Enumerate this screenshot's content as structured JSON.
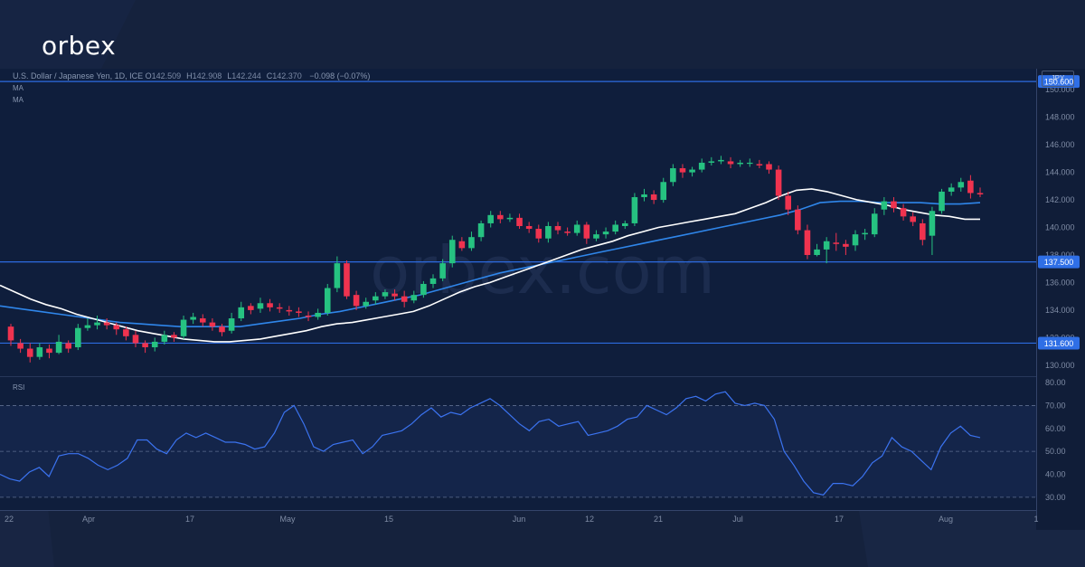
{
  "brand": {
    "logo_text": "orbex",
    "watermark": "orbex.com"
  },
  "header": {
    "instrument": "U.S. Dollar / Japanese Yen, 1D, ICE",
    "ohlc": [
      {
        "label": "O",
        "value": "142.509"
      },
      {
        "label": "H",
        "value": "142.908"
      },
      {
        "label": "L",
        "value": "142.244"
      },
      {
        "label": "C",
        "value": "142.370"
      }
    ],
    "change": "−0.098 (−0.07%)",
    "ma1": "MA",
    "ma2": "MA",
    "currency": "JPY"
  },
  "colors": {
    "up": "#26c281",
    "down": "#f0334f",
    "ma_fast": "#ffffff",
    "ma_slow": "#2f86ea",
    "hline": "#2d6be0",
    "rsi": "#3b73f0",
    "price_tag": "#2f6fe6"
  },
  "chart_data": [
    {
      "type": "candlestick",
      "title": "",
      "ylim": [
        129.2,
        151.0
      ],
      "y_ticks": [
        130.0,
        132.0,
        134.0,
        136.0,
        138.0,
        140.0,
        142.0,
        144.0,
        146.0,
        148.0,
        150.0
      ],
      "x_tick_labels": [
        "22",
        "Apr",
        "17",
        "May",
        "15",
        "Jun",
        "12",
        "21",
        "Jul",
        "17",
        "Aug",
        "1"
      ],
      "price_levels": [
        150.6,
        137.5,
        131.6
      ],
      "candles": [
        [
          132.8,
          131.8,
          133.0,
          131.4
        ],
        [
          131.6,
          131.2,
          131.9,
          130.9
        ],
        [
          131.2,
          130.6,
          131.6,
          130.2
        ],
        [
          130.6,
          131.3,
          131.6,
          130.4
        ],
        [
          131.2,
          130.9,
          131.5,
          130.5
        ],
        [
          130.9,
          131.7,
          132.2,
          130.8
        ],
        [
          131.6,
          131.2,
          131.8,
          130.9
        ],
        [
          131.3,
          132.7,
          133.0,
          131.1
        ],
        [
          132.7,
          132.9,
          133.4,
          132.5
        ],
        [
          132.9,
          133.1,
          133.6,
          132.6
        ],
        [
          133.1,
          132.9,
          133.4,
          132.6
        ],
        [
          132.9,
          132.6,
          133.1,
          132.2
        ],
        [
          132.6,
          132.1,
          132.8,
          131.8
        ],
        [
          132.2,
          131.6,
          132.5,
          131.3
        ],
        [
          131.6,
          131.3,
          131.8,
          130.9
        ],
        [
          131.3,
          131.7,
          132.0,
          131.0
        ],
        [
          131.7,
          132.2,
          132.5,
          131.5
        ],
        [
          132.2,
          132.0,
          132.4,
          131.7
        ],
        [
          132.1,
          133.3,
          133.6,
          131.9
        ],
        [
          133.3,
          133.5,
          133.8,
          133.0
        ],
        [
          133.4,
          133.1,
          133.7,
          132.8
        ],
        [
          133.1,
          132.8,
          133.4,
          132.5
        ],
        [
          132.8,
          132.4,
          133.0,
          132.1
        ],
        [
          132.5,
          133.4,
          133.8,
          132.3
        ],
        [
          133.4,
          134.2,
          134.6,
          133.2
        ],
        [
          134.3,
          134.0,
          134.5,
          133.7
        ],
        [
          134.1,
          134.5,
          134.9,
          133.8
        ],
        [
          134.5,
          134.2,
          134.8,
          133.9
        ],
        [
          134.2,
          134.1,
          134.5,
          133.8
        ],
        [
          134.0,
          133.9,
          134.3,
          133.6
        ],
        [
          133.9,
          133.8,
          134.2,
          133.5
        ],
        [
          133.6,
          133.5,
          133.9,
          133.2
        ],
        [
          133.5,
          133.8,
          134.1,
          133.3
        ],
        [
          133.8,
          135.6,
          135.9,
          133.6
        ],
        [
          135.6,
          137.4,
          137.9,
          135.3
        ],
        [
          137.4,
          135.0,
          137.6,
          134.8
        ],
        [
          135.1,
          134.3,
          135.4,
          134.0
        ],
        [
          134.3,
          134.6,
          134.9,
          134.1
        ],
        [
          134.7,
          135.0,
          135.3,
          134.4
        ],
        [
          135.0,
          135.3,
          135.5,
          134.8
        ],
        [
          135.2,
          135.0,
          135.5,
          134.7
        ],
        [
          135.0,
          134.6,
          135.4,
          134.2
        ],
        [
          134.7,
          135.1,
          135.4,
          134.5
        ],
        [
          135.1,
          135.9,
          136.1,
          134.9
        ],
        [
          135.9,
          136.3,
          136.6,
          135.6
        ],
        [
          136.3,
          137.4,
          137.7,
          136.1
        ],
        [
          137.4,
          139.1,
          139.4,
          137.1
        ],
        [
          139.0,
          138.5,
          139.3,
          138.3
        ],
        [
          138.5,
          139.3,
          139.7,
          138.3
        ],
        [
          139.3,
          140.3,
          140.5,
          139.0
        ],
        [
          140.3,
          140.9,
          141.2,
          140.0
        ],
        [
          140.9,
          140.6,
          141.2,
          140.3
        ],
        [
          140.6,
          140.7,
          141.0,
          140.4
        ],
        [
          140.7,
          140.1,
          141.0,
          139.9
        ],
        [
          140.1,
          139.9,
          140.4,
          139.6
        ],
        [
          139.9,
          139.2,
          140.2,
          138.9
        ],
        [
          139.2,
          140.1,
          140.4,
          138.9
        ],
        [
          140.1,
          139.8,
          140.4,
          139.5
        ],
        [
          139.7,
          139.6,
          140.0,
          139.4
        ],
        [
          139.6,
          140.2,
          140.5,
          139.4
        ],
        [
          140.2,
          139.2,
          140.4,
          138.8
        ],
        [
          139.2,
          139.5,
          139.8,
          139.0
        ],
        [
          139.5,
          139.7,
          140.0,
          139.2
        ],
        [
          139.7,
          140.2,
          140.5,
          139.5
        ],
        [
          140.1,
          140.3,
          140.5,
          139.9
        ],
        [
          140.3,
          142.2,
          142.5,
          140.1
        ],
        [
          142.2,
          142.4,
          142.8,
          141.9
        ],
        [
          142.4,
          142.0,
          142.7,
          141.7
        ],
        [
          142.0,
          143.3,
          143.6,
          141.8
        ],
        [
          143.3,
          144.3,
          144.6,
          143.0
        ],
        [
          144.3,
          144.0,
          144.6,
          143.6
        ],
        [
          144.0,
          144.2,
          144.4,
          143.7
        ],
        [
          144.2,
          144.7,
          145.0,
          144.0
        ],
        [
          144.7,
          144.8,
          145.1,
          144.5
        ],
        [
          144.8,
          144.9,
          145.2,
          144.6
        ],
        [
          144.8,
          144.6,
          145.1,
          144.3
        ],
        [
          144.6,
          144.7,
          144.9,
          144.4
        ],
        [
          144.7,
          144.7,
          145.0,
          144.4
        ],
        [
          144.6,
          144.5,
          144.9,
          144.3
        ],
        [
          144.6,
          144.2,
          144.8,
          143.9
        ],
        [
          144.2,
          142.3,
          144.5,
          142.0
        ],
        [
          142.3,
          141.3,
          142.6,
          140.9
        ],
        [
          141.3,
          139.8,
          141.6,
          139.5
        ],
        [
          139.8,
          138.0,
          140.2,
          137.7
        ],
        [
          138.0,
          138.4,
          138.8,
          137.9
        ],
        [
          138.4,
          139.0,
          139.3,
          137.4
        ],
        [
          138.9,
          138.8,
          139.6,
          138.3
        ],
        [
          138.8,
          138.6,
          139.1,
          138.0
        ],
        [
          138.7,
          139.5,
          139.8,
          138.3
        ],
        [
          139.5,
          139.6,
          139.9,
          139.1
        ],
        [
          139.5,
          141.0,
          141.4,
          139.3
        ],
        [
          141.3,
          141.9,
          142.2,
          140.9
        ],
        [
          141.9,
          141.4,
          142.2,
          141.1
        ],
        [
          141.4,
          140.8,
          141.7,
          140.5
        ],
        [
          140.8,
          140.4,
          141.1,
          140.1
        ],
        [
          140.3,
          139.1,
          140.6,
          138.7
        ],
        [
          139.4,
          141.2,
          141.5,
          138.0
        ],
        [
          141.2,
          142.6,
          142.8,
          141.0
        ],
        [
          142.6,
          142.9,
          143.2,
          142.3
        ],
        [
          142.9,
          143.3,
          143.6,
          142.6
        ],
        [
          143.4,
          142.5,
          143.8,
          142.1
        ],
        [
          142.5,
          142.4,
          142.9,
          142.2
        ]
      ],
      "ma_fast": [
        135.8,
        135.3,
        134.8,
        134.4,
        134.1,
        133.7,
        133.4,
        133.1,
        132.8,
        132.5,
        132.3,
        132.1,
        131.9,
        131.8,
        131.7,
        131.7,
        131.8,
        131.9,
        132.1,
        132.3,
        132.5,
        132.8,
        133.0,
        133.1,
        133.3,
        133.5,
        133.7,
        133.9,
        134.3,
        134.8,
        135.3,
        135.7,
        136.0,
        136.4,
        136.8,
        137.2,
        137.6,
        138.0,
        138.4,
        138.7,
        139.0,
        139.4,
        139.7,
        140.0,
        140.2,
        140.4,
        140.6,
        140.8,
        141.0,
        141.4,
        141.8,
        142.3,
        142.7,
        142.8,
        142.6,
        142.3,
        142.0,
        141.8,
        141.6,
        141.3,
        141.1,
        140.9,
        140.8,
        140.6,
        140.6
      ],
      "ma_slow": [
        134.3,
        134.1,
        133.9,
        133.7,
        133.5,
        133.3,
        133.1,
        133.0,
        132.9,
        132.8,
        132.8,
        132.8,
        132.8,
        133.0,
        133.2,
        133.4,
        133.7,
        133.9,
        134.2,
        134.5,
        134.8,
        135.1,
        135.5,
        135.9,
        136.3,
        136.7,
        137.0,
        137.3,
        137.6,
        137.9,
        138.2,
        138.5,
        138.8,
        139.1,
        139.4,
        139.7,
        140.0,
        140.3,
        140.6,
        140.9,
        141.3,
        141.8,
        141.9,
        141.9,
        141.8,
        141.8,
        141.8,
        141.7,
        141.7,
        141.8
      ],
      "ma_fast_name": "",
      "ma_slow_name": ""
    },
    {
      "type": "line",
      "title": "RSI",
      "ylim": [
        26,
        82
      ],
      "y_ticks": [
        30,
        40,
        50,
        60,
        70,
        80
      ],
      "bands": [
        30,
        50,
        70
      ],
      "values": [
        40,
        38,
        37,
        41,
        43,
        39,
        48,
        49,
        49,
        47,
        44,
        42,
        44,
        47,
        55,
        55,
        51,
        49,
        55,
        58,
        56,
        58,
        56,
        54,
        54,
        53,
        51,
        52,
        58,
        67,
        70,
        62,
        52,
        50,
        53,
        54,
        55,
        49,
        52,
        57,
        58,
        59,
        62,
        66,
        69,
        65,
        67,
        66,
        69,
        71,
        73,
        70,
        66,
        62,
        59,
        63,
        64,
        61,
        62,
        63,
        57,
        58,
        59,
        61,
        64,
        65,
        70,
        68,
        66,
        69,
        73,
        74,
        72,
        75,
        76,
        71,
        70,
        71,
        70,
        64,
        50,
        44,
        37,
        32,
        31,
        36,
        36,
        35,
        39,
        45,
        48,
        56,
        52,
        50,
        46,
        42,
        52,
        58,
        61,
        57,
        56
      ]
    }
  ]
}
